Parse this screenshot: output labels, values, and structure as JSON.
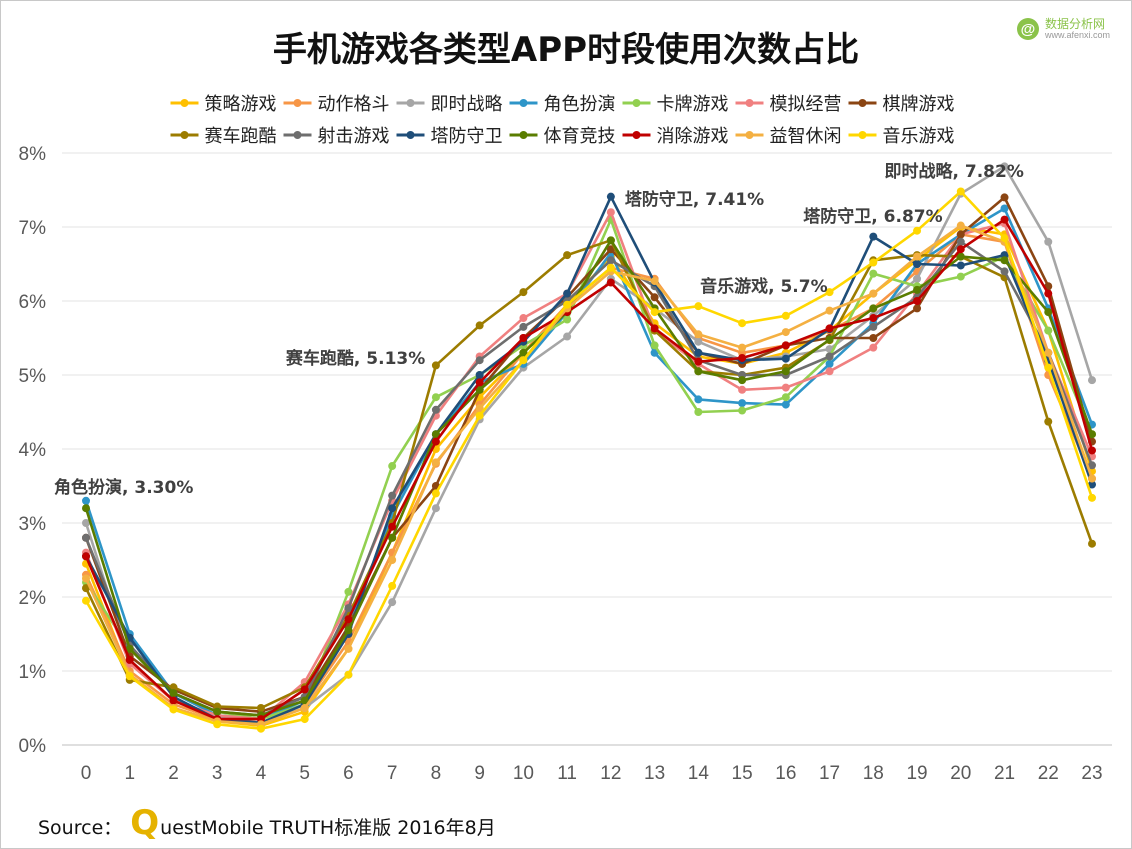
{
  "title": "手机游戏各类型APP时段使用次数占比",
  "brand": {
    "name": "数据分析网",
    "url": "www.afenxi.com",
    "logo_char": "@"
  },
  "source": {
    "prefix": "Source：",
    "logo_letter": "Q",
    "text": "uestMobile TRUTH标准版 2016年8月"
  },
  "chart_data": {
    "type": "line",
    "x": [
      0,
      1,
      2,
      3,
      4,
      5,
      6,
      7,
      8,
      9,
      10,
      11,
      12,
      13,
      14,
      15,
      16,
      17,
      18,
      19,
      20,
      21,
      22,
      23
    ],
    "ylim": [
      0,
      8
    ],
    "yticks": [
      "0%",
      "1%",
      "2%",
      "3%",
      "4%",
      "5%",
      "6%",
      "7%",
      "8%"
    ],
    "grid": true,
    "legend_position": "top",
    "series": [
      {
        "name": "策略游戏",
        "color": "#ffc000",
        "values": [
          2.45,
          0.95,
          0.5,
          0.32,
          0.26,
          0.45,
          1.3,
          2.6,
          4.0,
          4.7,
          5.3,
          5.95,
          6.6,
          5.7,
          5.25,
          5.15,
          5.3,
          5.6,
          6.1,
          6.55,
          7.0,
          6.9,
          5.6,
          3.7
        ]
      },
      {
        "name": "动作格斗",
        "color": "#f79646",
        "values": [
          2.3,
          1.0,
          0.55,
          0.35,
          0.3,
          0.55,
          1.4,
          2.6,
          3.8,
          4.6,
          5.3,
          5.95,
          6.45,
          6.3,
          5.5,
          5.3,
          5.4,
          5.6,
          5.9,
          6.4,
          6.9,
          6.8,
          5.0,
          3.6
        ]
      },
      {
        "name": "即时战略",
        "color": "#a6a6a6",
        "values": [
          3.0,
          1.15,
          0.6,
          0.38,
          0.3,
          0.5,
          0.95,
          1.93,
          3.2,
          4.4,
          5.1,
          5.52,
          6.3,
          5.9,
          5.45,
          5.2,
          5.25,
          5.35,
          5.8,
          6.3,
          7.45,
          7.82,
          6.8,
          4.93
        ]
      },
      {
        "name": "角色扮演",
        "color": "#2e95c8",
        "values": [
          3.3,
          1.5,
          0.7,
          0.4,
          0.35,
          0.6,
          1.6,
          3.1,
          4.2,
          4.9,
          5.15,
          5.85,
          6.65,
          5.3,
          4.67,
          4.62,
          4.6,
          5.15,
          5.7,
          6.5,
          6.9,
          7.25,
          5.9,
          4.33
        ]
      },
      {
        "name": "卡牌游戏",
        "color": "#92d050",
        "values": [
          2.2,
          1.3,
          0.7,
          0.45,
          0.35,
          0.55,
          2.07,
          3.77,
          4.7,
          5.0,
          5.4,
          5.75,
          7.1,
          5.4,
          4.5,
          4.52,
          4.7,
          5.25,
          6.37,
          6.2,
          6.33,
          6.6,
          5.6,
          4.2
        ]
      },
      {
        "name": "模拟经营",
        "color": "#f08080",
        "values": [
          2.6,
          1.1,
          0.6,
          0.4,
          0.35,
          0.85,
          1.9,
          3.3,
          4.45,
          5.25,
          5.77,
          6.1,
          7.2,
          5.6,
          5.15,
          4.8,
          4.83,
          5.05,
          5.37,
          6.1,
          6.9,
          7.05,
          5.3,
          3.9
        ]
      },
      {
        "name": "棋牌游戏",
        "color": "#8b4513",
        "values": [
          2.8,
          1.2,
          0.75,
          0.5,
          0.45,
          0.65,
          1.6,
          2.8,
          3.5,
          4.8,
          5.5,
          6.05,
          6.7,
          6.05,
          5.3,
          5.15,
          5.4,
          5.5,
          5.5,
          5.9,
          6.9,
          7.4,
          6.2,
          4.1
        ]
      },
      {
        "name": "赛车跑酷",
        "color": "#9c7c00",
        "values": [
          2.12,
          0.88,
          0.78,
          0.52,
          0.5,
          0.78,
          1.75,
          3.0,
          5.13,
          5.67,
          6.12,
          6.62,
          6.82,
          5.6,
          5.05,
          5.0,
          5.1,
          5.47,
          6.55,
          6.62,
          6.6,
          6.32,
          4.37,
          2.72
        ]
      },
      {
        "name": "射击游戏",
        "color": "#6e6e6e",
        "values": [
          2.8,
          1.35,
          0.7,
          0.45,
          0.4,
          0.65,
          1.85,
          3.37,
          4.53,
          5.2,
          5.65,
          6.0,
          6.55,
          6.2,
          5.2,
          5.0,
          5.0,
          5.25,
          5.65,
          6.05,
          6.8,
          6.4,
          5.3,
          3.78
        ]
      },
      {
        "name": "塔防守卫",
        "color": "#1f4e79",
        "values": [
          2.55,
          1.45,
          0.65,
          0.35,
          0.3,
          0.55,
          1.5,
          3.2,
          4.2,
          5.0,
          5.45,
          6.1,
          7.41,
          6.25,
          5.3,
          5.2,
          5.22,
          5.62,
          6.87,
          6.5,
          6.48,
          6.62,
          5.2,
          3.52
        ]
      },
      {
        "name": "体育竞技",
        "color": "#5a7d00",
        "values": [
          3.2,
          1.3,
          0.7,
          0.45,
          0.4,
          0.6,
          1.55,
          2.8,
          4.2,
          4.8,
          5.3,
          5.85,
          6.82,
          5.9,
          5.05,
          4.93,
          5.05,
          5.48,
          5.9,
          6.15,
          6.6,
          6.55,
          5.85,
          4.2
        ]
      },
      {
        "name": "消除游戏",
        "color": "#c00000",
        "values": [
          2.55,
          1.15,
          0.6,
          0.35,
          0.35,
          0.75,
          1.7,
          2.95,
          4.1,
          4.9,
          5.5,
          5.85,
          6.25,
          5.63,
          5.18,
          5.23,
          5.4,
          5.63,
          5.77,
          6.0,
          6.7,
          7.1,
          6.1,
          3.98
        ]
      },
      {
        "name": "益智休闲",
        "color": "#f4b042",
        "values": [
          2.25,
          0.95,
          0.5,
          0.32,
          0.28,
          0.5,
          1.3,
          2.5,
          3.82,
          4.55,
          5.2,
          5.9,
          6.4,
          6.27,
          5.55,
          5.37,
          5.58,
          5.87,
          6.1,
          6.6,
          7.02,
          6.8,
          5.3,
          3.6
        ]
      },
      {
        "name": "音乐游戏",
        "color": "#ffd700",
        "values": [
          1.95,
          0.93,
          0.48,
          0.28,
          0.22,
          0.35,
          0.95,
          2.15,
          3.4,
          4.45,
          5.2,
          5.95,
          6.45,
          5.85,
          5.93,
          5.7,
          5.8,
          6.12,
          6.52,
          6.95,
          7.48,
          6.85,
          5.1,
          3.34
        ]
      }
    ],
    "annotations": [
      {
        "text": "角色扮演, 3.30%",
        "x": 0,
        "y": 3.3
      },
      {
        "text": "赛车跑酷, 5.13%",
        "x": 8,
        "y": 5.13
      },
      {
        "text": "塔防守卫, 7.41%",
        "x": 12,
        "y": 7.41
      },
      {
        "text": "音乐游戏, 5.7%",
        "x": 15,
        "y": 5.7
      },
      {
        "text": "塔防守卫, 6.87%",
        "x": 18,
        "y": 6.87
      },
      {
        "text": "即时战略, 7.82%",
        "x": 21,
        "y": 7.82
      }
    ]
  }
}
